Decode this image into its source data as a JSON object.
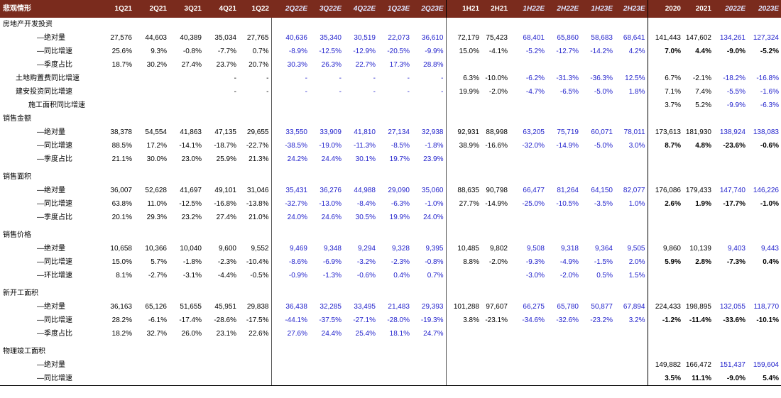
{
  "header": {
    "label": "悲观情形",
    "cols": [
      "1Q21",
      "2Q21",
      "3Q21",
      "4Q21",
      "1Q22",
      "2Q22E",
      "3Q22E",
      "4Q22E",
      "1Q23E",
      "2Q23E",
      "1H21",
      "2H21",
      "1H22E",
      "2H22E",
      "1H23E",
      "2H23E",
      "2020",
      "2021",
      "2022E",
      "2023E"
    ],
    "est": [
      false,
      false,
      false,
      false,
      false,
      true,
      true,
      true,
      true,
      true,
      false,
      false,
      true,
      true,
      true,
      true,
      false,
      false,
      true,
      true
    ]
  },
  "rows": [
    {
      "kind": "section",
      "label": "房地产开发投资",
      "indent": "sec",
      "vals": [
        "",
        "",
        "",
        "",
        "",
        "",
        "",
        "",
        "",
        "",
        "",
        "",
        "",
        "",
        "",
        "",
        "",
        "",
        "",
        ""
      ]
    },
    {
      "kind": "data",
      "label": "—绝对量",
      "indent": "ind1",
      "vals": [
        "27,576",
        "44,603",
        "40,389",
        "35,034",
        "27,765",
        "40,636",
        "35,340",
        "30,519",
        "22,073",
        "36,610",
        "72,179",
        "75,423",
        "68,401",
        "65,860",
        "58,683",
        "68,641",
        "141,443",
        "147,602",
        "134,261",
        "127,324"
      ],
      "bold_annual": false
    },
    {
      "kind": "data",
      "label": "—同比增速",
      "indent": "ind1",
      "vals": [
        "25.6%",
        "9.3%",
        "-0.8%",
        "-7.7%",
        "0.7%",
        "-8.9%",
        "-12.5%",
        "-12.9%",
        "-20.5%",
        "-9.9%",
        "15.0%",
        "-4.1%",
        "-5.2%",
        "-12.7%",
        "-14.2%",
        "4.2%",
        "7.0%",
        "4.4%",
        "-9.0%",
        "-5.2%"
      ],
      "bold_annual": true
    },
    {
      "kind": "data",
      "label": "—季度占比",
      "indent": "ind1",
      "vals": [
        "18.7%",
        "30.2%",
        "27.4%",
        "23.7%",
        "20.7%",
        "30.3%",
        "26.3%",
        "22.7%",
        "17.3%",
        "28.8%",
        "",
        "",
        "",
        "",
        "",
        "",
        "",
        "",
        "",
        ""
      ],
      "bold_annual": false
    },
    {
      "kind": "data",
      "label": "土地购置费同比增速",
      "indent": "ind2",
      "vals": [
        "",
        "",
        "",
        "-",
        "-",
        "-",
        "-",
        "-",
        "-",
        "-",
        "6.3%",
        "-10.0%",
        "-6.2%",
        "-31.3%",
        "-36.3%",
        "12.5%",
        "6.7%",
        "-2.1%",
        "-18.2%",
        "-16.8%"
      ],
      "bold_annual": false
    },
    {
      "kind": "data",
      "label": "建安投资同比增速",
      "indent": "ind2",
      "vals": [
        "",
        "",
        "",
        "-",
        "-",
        "-",
        "-",
        "-",
        "-",
        "-",
        "19.9%",
        "-2.0%",
        "-4.7%",
        "-6.5%",
        "-5.0%",
        "1.8%",
        "7.1%",
        "7.4%",
        "-5.5%",
        "-1.6%"
      ],
      "bold_annual": false
    },
    {
      "kind": "data",
      "label": "施工面积同比增速",
      "indent": "ind3",
      "vals": [
        "",
        "",
        "",
        "",
        "",
        "",
        "",
        "",
        "",
        "",
        "",
        "",
        "",
        "",
        "",
        "",
        "3.7%",
        "5.2%",
        "-9.9%",
        "-6.3%"
      ],
      "bold_annual": false
    },
    {
      "kind": "section",
      "label": "销售金额",
      "indent": "sec",
      "vals": [
        "",
        "",
        "",
        "",
        "",
        "",
        "",
        "",
        "",
        "",
        "",
        "",
        "",
        "",
        "",
        "",
        "",
        "",
        "",
        ""
      ]
    },
    {
      "kind": "data",
      "label": "—绝对量",
      "indent": "ind1",
      "vals": [
        "38,378",
        "54,554",
        "41,863",
        "47,135",
        "29,655",
        "33,550",
        "33,909",
        "41,810",
        "27,134",
        "32,938",
        "92,931",
        "88,998",
        "63,205",
        "75,719",
        "60,071",
        "78,011",
        "173,613",
        "181,930",
        "138,924",
        "138,083"
      ],
      "bold_annual": false
    },
    {
      "kind": "data",
      "label": "—同比增速",
      "indent": "ind1",
      "vals": [
        "88.5%",
        "17.2%",
        "-14.1%",
        "-18.7%",
        "-22.7%",
        "-38.5%",
        "-19.0%",
        "-11.3%",
        "-8.5%",
        "-1.8%",
        "38.9%",
        "-16.6%",
        "-32.0%",
        "-14.9%",
        "-5.0%",
        "3.0%",
        "8.7%",
        "4.8%",
        "-23.6%",
        "-0.6%"
      ],
      "bold_annual": true
    },
    {
      "kind": "data",
      "label": "—季度占比",
      "indent": "ind1",
      "vals": [
        "21.1%",
        "30.0%",
        "23.0%",
        "25.9%",
        "21.3%",
        "24.2%",
        "24.4%",
        "30.1%",
        "19.7%",
        "23.9%",
        "",
        "",
        "",
        "",
        "",
        "",
        "",
        "",
        "",
        ""
      ],
      "bold_annual": false
    },
    {
      "kind": "spacer"
    },
    {
      "kind": "section",
      "label": "销售面积",
      "indent": "sec",
      "vals": [
        "",
        "",
        "",
        "",
        "",
        "",
        "",
        "",
        "",
        "",
        "",
        "",
        "",
        "",
        "",
        "",
        "",
        "",
        "",
        ""
      ]
    },
    {
      "kind": "data",
      "label": "—绝对量",
      "indent": "ind1",
      "vals": [
        "36,007",
        "52,628",
        "41,697",
        "49,101",
        "31,046",
        "35,431",
        "36,276",
        "44,988",
        "29,090",
        "35,060",
        "88,635",
        "90,798",
        "66,477",
        "81,264",
        "64,150",
        "82,077",
        "176,086",
        "179,433",
        "147,740",
        "146,226"
      ],
      "bold_annual": false
    },
    {
      "kind": "data",
      "label": "—同比增速",
      "indent": "ind1",
      "vals": [
        "63.8%",
        "11.0%",
        "-12.5%",
        "-16.8%",
        "-13.8%",
        "-32.7%",
        "-13.0%",
        "-8.4%",
        "-6.3%",
        "-1.0%",
        "27.7%",
        "-14.9%",
        "-25.0%",
        "-10.5%",
        "-3.5%",
        "1.0%",
        "2.6%",
        "1.9%",
        "-17.7%",
        "-1.0%"
      ],
      "bold_annual": true
    },
    {
      "kind": "data",
      "label": "—季度占比",
      "indent": "ind1",
      "vals": [
        "20.1%",
        "29.3%",
        "23.2%",
        "27.4%",
        "21.0%",
        "24.0%",
        "24.6%",
        "30.5%",
        "19.9%",
        "24.0%",
        "",
        "",
        "",
        "",
        "",
        "",
        "",
        "",
        "",
        ""
      ],
      "bold_annual": false
    },
    {
      "kind": "spacer"
    },
    {
      "kind": "section",
      "label": "销售价格",
      "indent": "sec",
      "vals": [
        "",
        "",
        "",
        "",
        "",
        "",
        "",
        "",
        "",
        "",
        "",
        "",
        "",
        "",
        "",
        "",
        "",
        "",
        "",
        ""
      ]
    },
    {
      "kind": "data",
      "label": "—绝对量",
      "indent": "ind1",
      "vals": [
        "10,658",
        "10,366",
        "10,040",
        "9,600",
        "9,552",
        "9,469",
        "9,348",
        "9,294",
        "9,328",
        "9,395",
        "10,485",
        "9,802",
        "9,508",
        "9,318",
        "9,364",
        "9,505",
        "9,860",
        "10,139",
        "9,403",
        "9,443"
      ],
      "bold_annual": false
    },
    {
      "kind": "data",
      "label": "—同比增速",
      "indent": "ind1",
      "vals": [
        "15.0%",
        "5.7%",
        "-1.8%",
        "-2.3%",
        "-10.4%",
        "-8.6%",
        "-6.9%",
        "-3.2%",
        "-2.3%",
        "-0.8%",
        "8.8%",
        "-2.0%",
        "-9.3%",
        "-4.9%",
        "-1.5%",
        "2.0%",
        "5.9%",
        "2.8%",
        "-7.3%",
        "0.4%"
      ],
      "bold_annual": true
    },
    {
      "kind": "data",
      "label": "—环比增速",
      "indent": "ind1",
      "vals": [
        "8.1%",
        "-2.7%",
        "-3.1%",
        "-4.4%",
        "-0.5%",
        "-0.9%",
        "-1.3%",
        "-0.6%",
        "0.4%",
        "0.7%",
        "",
        "",
        "-3.0%",
        "-2.0%",
        "0.5%",
        "1.5%",
        "",
        "",
        "",
        ""
      ],
      "bold_annual": false
    },
    {
      "kind": "spacer"
    },
    {
      "kind": "section",
      "label": "新开工面积",
      "indent": "sec",
      "vals": [
        "",
        "",
        "",
        "",
        "",
        "",
        "",
        "",
        "",
        "",
        "",
        "",
        "",
        "",
        "",
        "",
        "",
        "",
        "",
        ""
      ]
    },
    {
      "kind": "data",
      "label": "—绝对量",
      "indent": "ind1",
      "vals": [
        "36,163",
        "65,126",
        "51,655",
        "45,951",
        "29,838",
        "36,438",
        "32,285",
        "33,495",
        "21,483",
        "29,393",
        "101,288",
        "97,607",
        "66,275",
        "65,780",
        "50,877",
        "67,894",
        "224,433",
        "198,895",
        "132,055",
        "118,770"
      ],
      "bold_annual": false
    },
    {
      "kind": "data",
      "label": "—同比增速",
      "indent": "ind1",
      "vals": [
        "28.2%",
        "-6.1%",
        "-17.4%",
        "-28.6%",
        "-17.5%",
        "-44.1%",
        "-37.5%",
        "-27.1%",
        "-28.0%",
        "-19.3%",
        "3.8%",
        "-23.1%",
        "-34.6%",
        "-32.6%",
        "-23.2%",
        "3.2%",
        "-1.2%",
        "-11.4%",
        "-33.6%",
        "-10.1%"
      ],
      "bold_annual": true
    },
    {
      "kind": "data",
      "label": "—季度占比",
      "indent": "ind1",
      "vals": [
        "18.2%",
        "32.7%",
        "26.0%",
        "23.1%",
        "22.6%",
        "27.6%",
        "24.4%",
        "25.4%",
        "18.1%",
        "24.7%",
        "",
        "",
        "",
        "",
        "",
        "",
        "",
        "",
        "",
        ""
      ],
      "bold_annual": false
    },
    {
      "kind": "spacer"
    },
    {
      "kind": "section",
      "label": "物理竣工面积",
      "indent": "sec",
      "vals": [
        "",
        "",
        "",
        "",
        "",
        "",
        "",
        "",
        "",
        "",
        "",
        "",
        "",
        "",
        "",
        "",
        "",
        "",
        "",
        ""
      ]
    },
    {
      "kind": "data",
      "label": "—绝对量",
      "indent": "ind1",
      "vals": [
        "",
        "",
        "",
        "",
        "",
        "",
        "",
        "",
        "",
        "",
        "",
        "",
        "",
        "",
        "",
        "",
        "149,882",
        "166,472",
        "151,437",
        "159,604"
      ],
      "bold_annual": false
    },
    {
      "kind": "data",
      "label": "—同比增速",
      "indent": "ind1",
      "vals": [
        "",
        "",
        "",
        "",
        "",
        "",
        "",
        "",
        "",
        "",
        "",
        "",
        "",
        "",
        "",
        "",
        "3.5%",
        "11.1%",
        "-9.0%",
        "5.4%"
      ],
      "bold_annual": true,
      "last": true
    }
  ]
}
